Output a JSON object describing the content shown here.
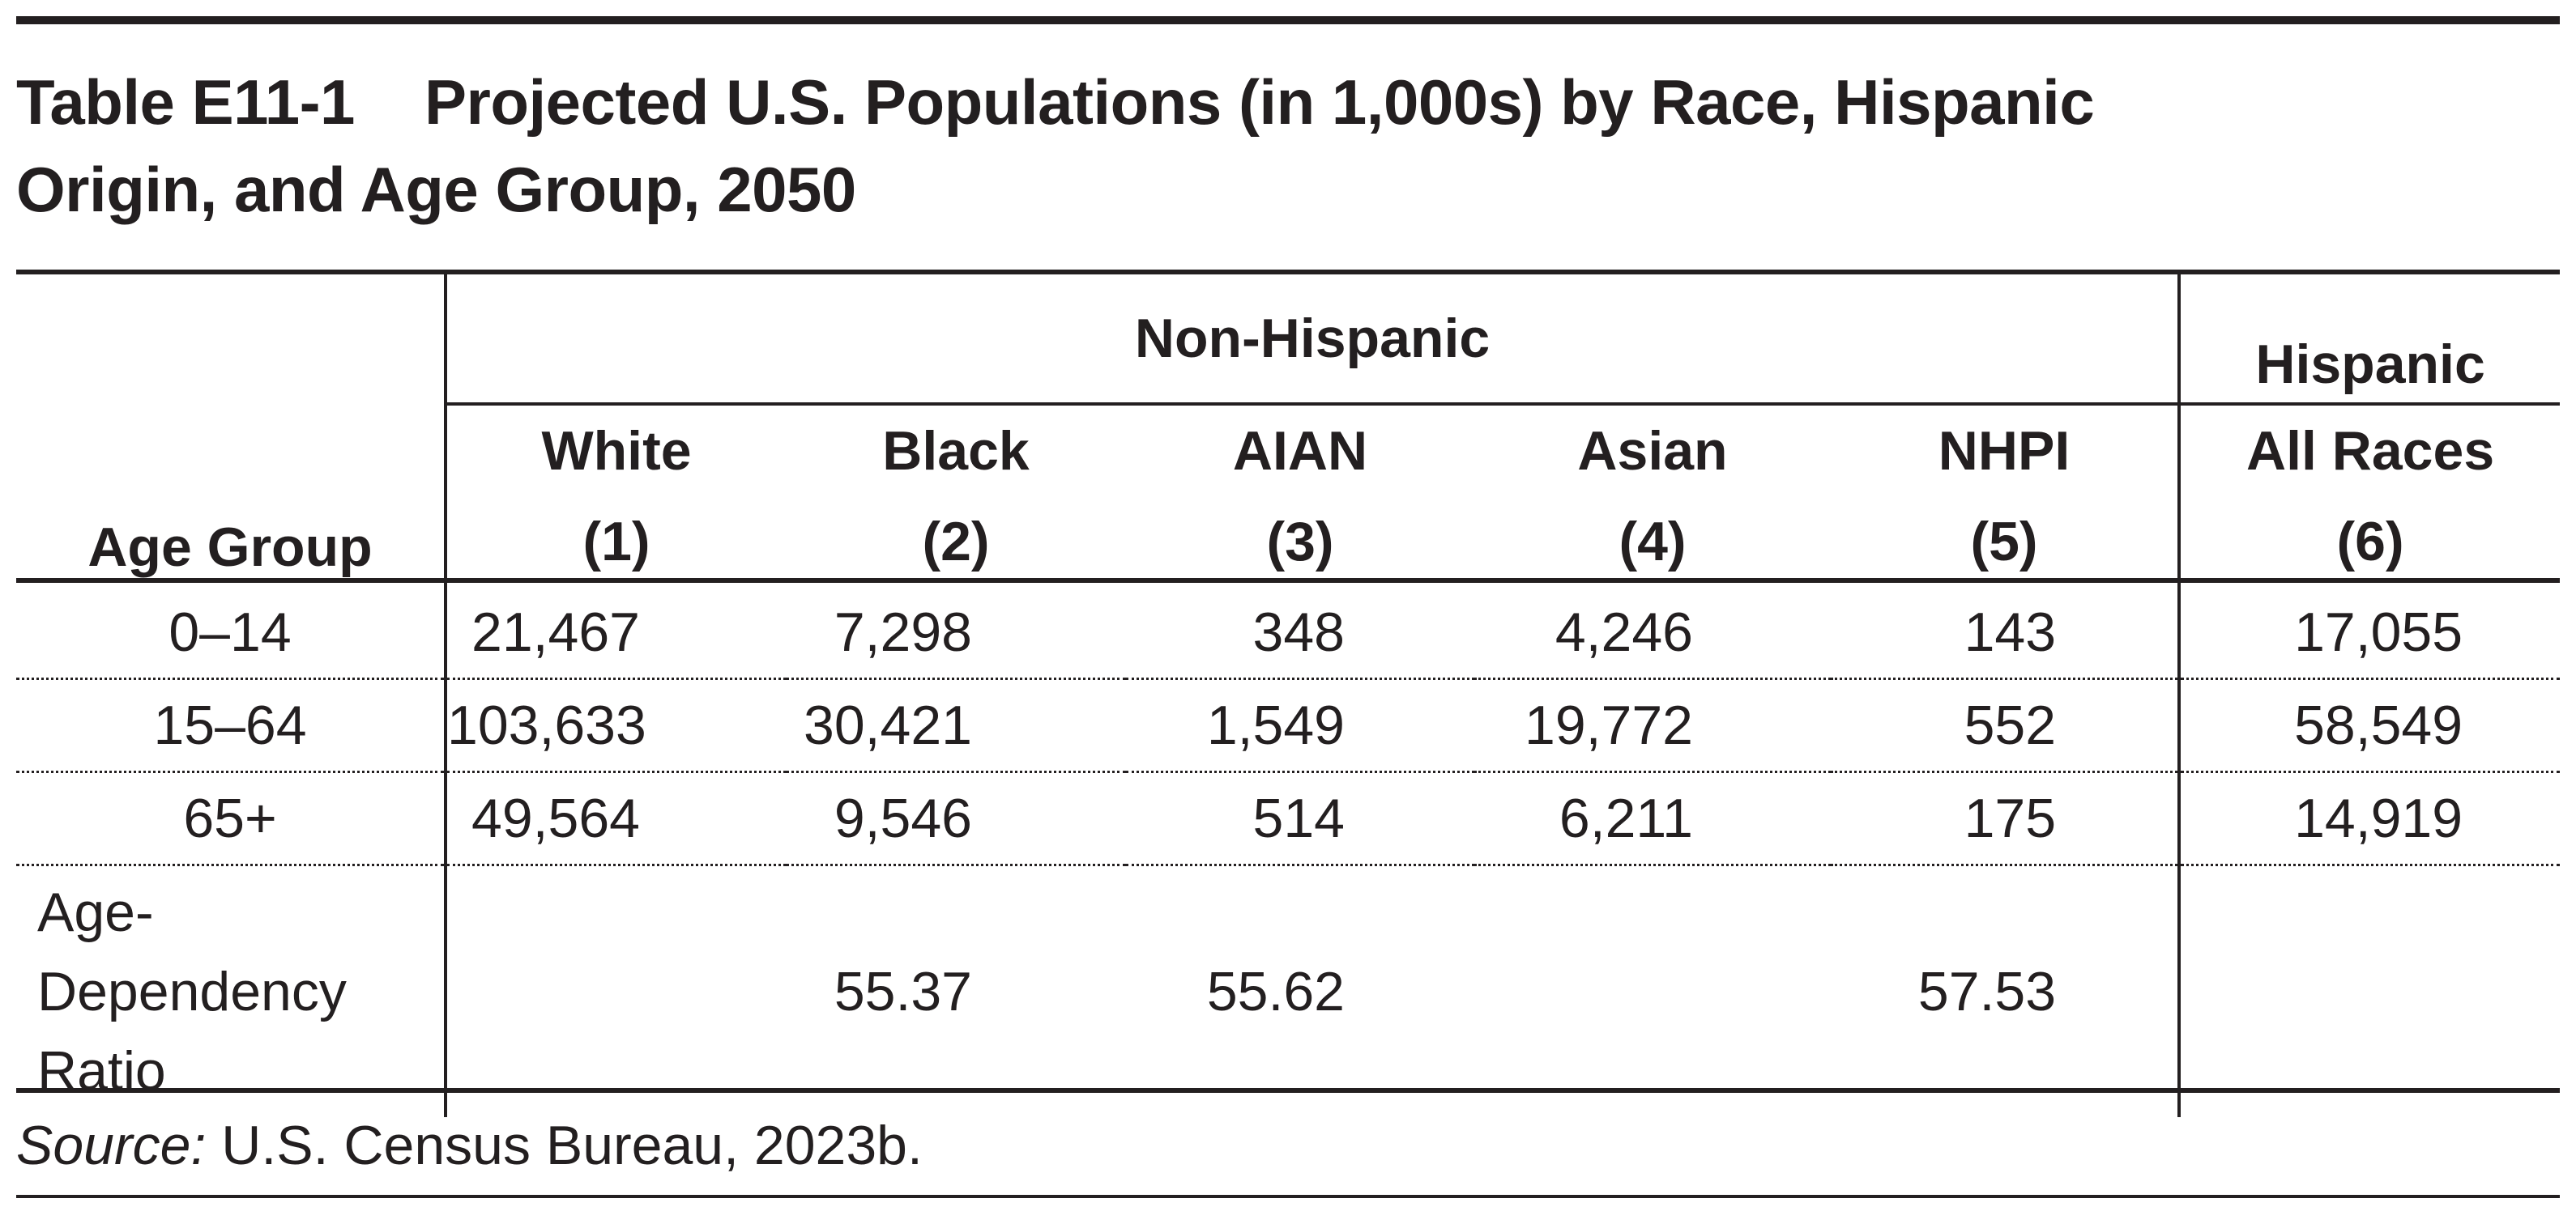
{
  "title": {
    "label": "Table E11-1",
    "line1": "Projected U.S. Populations (in 1,000s) by Race, Hispanic",
    "line2": "Origin, and Age Group, 2050"
  },
  "header": {
    "group_non_hispanic": "Non-Hispanic",
    "group_hispanic": "Hispanic",
    "age_group": "Age Group",
    "columns": [
      {
        "name": "White",
        "num": "(1)"
      },
      {
        "name": "Black",
        "num": "(2)"
      },
      {
        "name": "AIAN",
        "num": "(3)"
      },
      {
        "name": "Asian",
        "num": "(4)"
      },
      {
        "name": "NHPI",
        "num": "(5)"
      },
      {
        "name": "All Races",
        "num": "(6)"
      }
    ]
  },
  "rows": [
    {
      "age": "0–14",
      "values": [
        "21,467",
        "7,298",
        "348",
        "4,246",
        "143",
        "17,055"
      ]
    },
    {
      "age": "15–64",
      "values": [
        "103,633",
        "30,421",
        "1,549",
        "19,772",
        "552",
        "58,549"
      ]
    },
    {
      "age": "65+",
      "values": [
        "49,564",
        "9,546",
        "514",
        "6,211",
        "175",
        "14,919"
      ]
    }
  ],
  "ratio_row": {
    "label_lines": [
      "Age-",
      "Dependency",
      "Ratio"
    ],
    "values": [
      "",
      "55.37",
      "55.62",
      "",
      "57.53",
      ""
    ]
  },
  "source": {
    "label": "Source:",
    "text": " U.S. Census Bureau, 2023b."
  }
}
